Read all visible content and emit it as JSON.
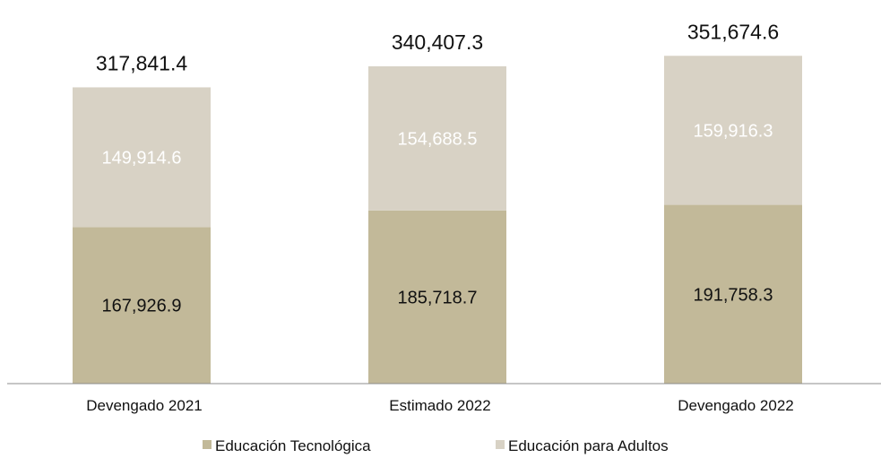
{
  "chart_data": {
    "type": "bar",
    "stacked": true,
    "categories": [
      "Devengado 2021",
      "Estimado 2022",
      "Devengado 2022"
    ],
    "series": [
      {
        "name": "Educación Tecnológica",
        "values": [
          167926.9,
          185718.7,
          191758.3
        ],
        "color": "#c2b999"
      },
      {
        "name": "Educación para Adultos",
        "values": [
          149914.6,
          154688.5,
          159916.3
        ],
        "color": "#d8d2c5"
      }
    ],
    "value_labels": [
      [
        "167,926.9",
        "185,718.7",
        "191,758.3"
      ],
      [
        "149,914.6",
        "154,688.5",
        "159,916.3"
      ]
    ],
    "totals": [
      317841.4,
      340407.3,
      351674.6
    ],
    "total_labels": [
      "317,841.4",
      "340,407.3",
      "351,674.6"
    ],
    "title": "",
    "xlabel": "",
    "ylabel": "",
    "ylim": [
      0,
      400000
    ],
    "grid": false,
    "legend": "bottom",
    "label_colors": {
      "bottom_series": "#111111",
      "top_series": "#ffffff"
    }
  }
}
